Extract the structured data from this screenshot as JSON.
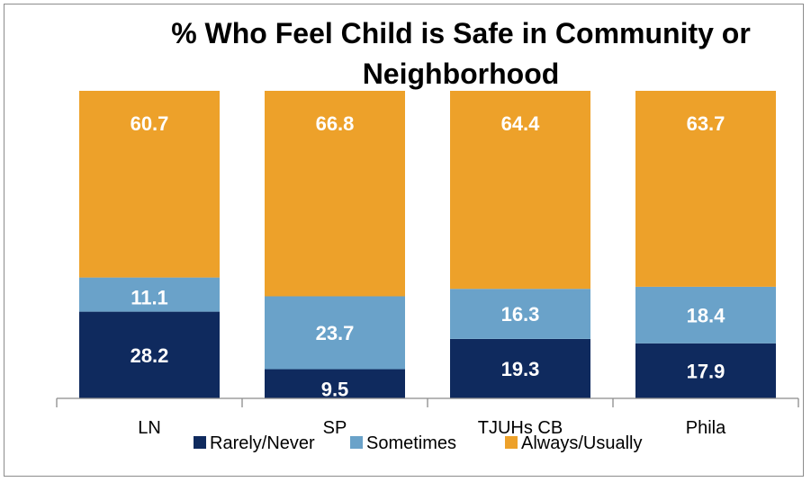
{
  "chart_data": {
    "type": "bar",
    "stacked": true,
    "title": "% Who Feel Child is Safe in Community or Neighborhood",
    "title_lines": [
      "% Who Feel Child is Safe in Community or",
      "Neighborhood"
    ],
    "categories": [
      "LN",
      "SP",
      "TJUHs CB",
      "Phila"
    ],
    "series": [
      {
        "name": "Rarely/Never",
        "values": [
          28.2,
          9.5,
          19.3,
          17.9
        ],
        "color": "#0f2a5e"
      },
      {
        "name": "Sometimes",
        "values": [
          11.1,
          23.7,
          16.3,
          18.4
        ],
        "color": "#6aa2c9"
      },
      {
        "name": "Always/Usually",
        "values": [
          60.7,
          66.8,
          64.4,
          63.7
        ],
        "color": "#eda12a"
      }
    ],
    "ylim": [
      0,
      100
    ],
    "legend_position": "bottom",
    "grid": false
  }
}
